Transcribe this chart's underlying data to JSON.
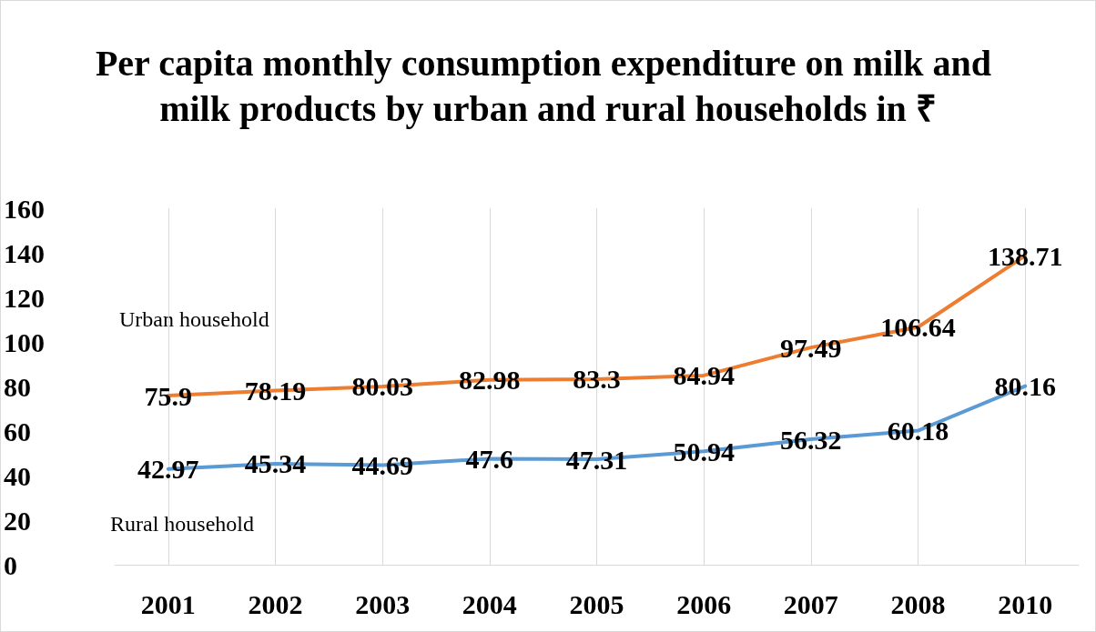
{
  "chart_data": {
    "type": "line",
    "title": "Per capita monthly consumption expenditure on milk and milk products by urban and rural households in ₹",
    "categories": [
      "2001",
      "2002",
      "2003",
      "2004",
      "2005",
      "2006",
      "2007",
      "2008",
      "2010"
    ],
    "series": [
      {
        "name": "Urban household",
        "color": "#ed7d31",
        "values": [
          75.9,
          78.19,
          80.03,
          82.98,
          83.3,
          84.94,
          97.49,
          106.64,
          138.71
        ]
      },
      {
        "name": "Rural household",
        "color": "#5b9bd5",
        "values": [
          42.97,
          45.34,
          44.69,
          47.6,
          47.31,
          50.94,
          56.32,
          60.18,
          80.16
        ]
      }
    ],
    "ylim": [
      0,
      160
    ],
    "yticks": [
      0,
      20,
      40,
      60,
      80,
      100,
      120,
      140,
      160
    ],
    "grid": "x",
    "legend": false,
    "marker": "none",
    "line_style": "solid",
    "data_labels": true
  }
}
